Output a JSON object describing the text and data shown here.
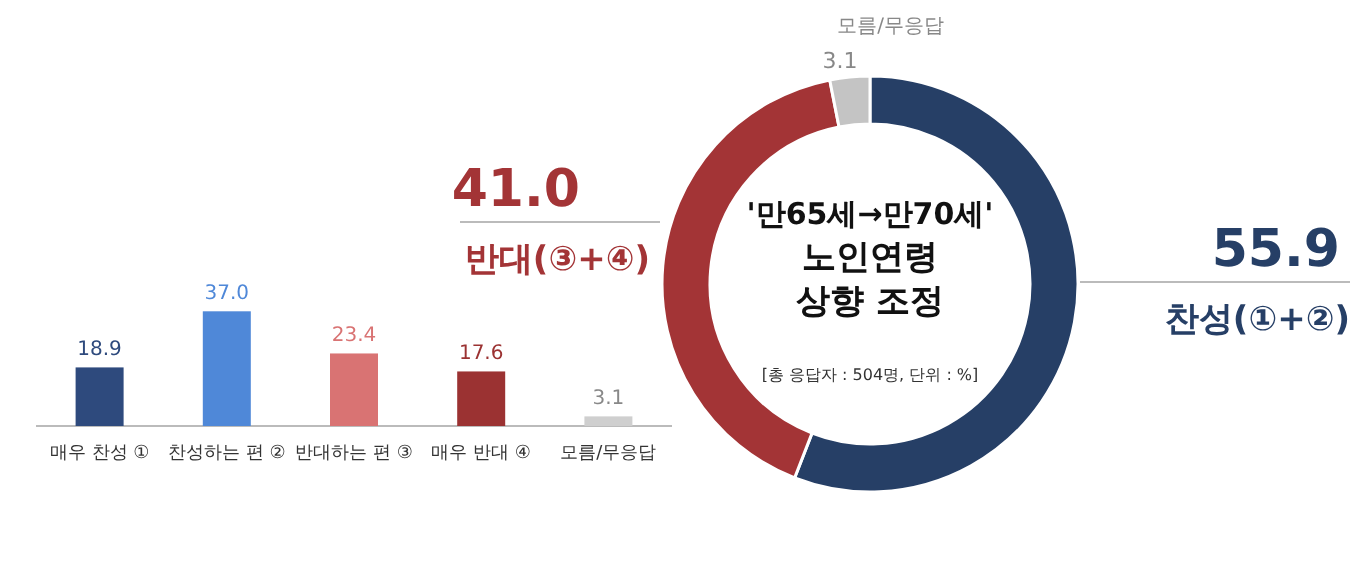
{
  "chart_data": [
    {
      "type": "bar",
      "categories": [
        "매우 찬성 ①",
        "찬성하는 편 ②",
        "반대하는 편 ③",
        "매우 반대 ④",
        "모름/무응답"
      ],
      "values": [
        18.9,
        37.0,
        23.4,
        17.6,
        3.1
      ],
      "colors": [
        "#2e4a7d",
        "#4f88d8",
        "#d97373",
        "#9b3232",
        "#cfcfcf"
      ],
      "value_labels": [
        "18.9",
        "37.0",
        "23.4",
        "17.6",
        "3.1"
      ]
    },
    {
      "type": "donut",
      "title": "'만65세→만70세' 노인연령 상향 조정",
      "subtitle": "[총 응답자 : 504명, 단위 : %]",
      "categories": [
        "찬성(①+②)",
        "반대(③+④)",
        "모름/무응답"
      ],
      "values": [
        55.9,
        41.0,
        3.1
      ],
      "colors": [
        "#263f66",
        "#a33436",
        "#c4c4c4"
      ],
      "value_labels": [
        "55.9",
        "41.0",
        "3.1"
      ]
    }
  ]
}
